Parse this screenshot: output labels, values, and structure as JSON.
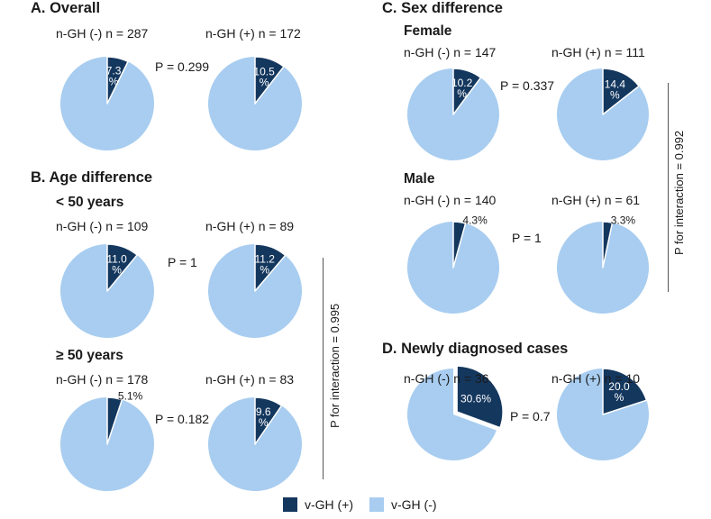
{
  "colors": {
    "positive": "#14375e",
    "negative": "#a8cdf0",
    "edge": "#ffffff"
  },
  "sections": {
    "A": "A. Overall",
    "B": "B. Age difference",
    "C": "C. Sex difference",
    "D": "D. Newly diagnosed cases"
  },
  "subheadings": {
    "under50": "< 50 years",
    "over50": "≥ 50 years",
    "female": "Female",
    "male": "Male"
  },
  "interactions": {
    "age": "P for interaction = 0.995",
    "sex": "P for interaction = 0.992"
  },
  "legend": {
    "positive": "v-GH (+)",
    "negative": "v-GH (-)"
  },
  "chart_data": [
    {
      "type": "pie",
      "panel": "A. Overall",
      "p_value": "P = 0.299",
      "pies": [
        {
          "label": "n-GH (-) n = 287",
          "positive_pct": 7.3,
          "display": "7.3\n%",
          "label_inside": true,
          "explode": false
        },
        {
          "label": "n-GH (+) n = 172",
          "positive_pct": 10.5,
          "display": "10.5\n%",
          "label_inside": true,
          "explode": false
        }
      ]
    },
    {
      "type": "pie",
      "panel": "B. Age difference",
      "group": "< 50 years",
      "p_value": "P = 1",
      "pies": [
        {
          "label": "n-GH (-) n = 109",
          "positive_pct": 11.0,
          "display": "11.0\n%",
          "label_inside": true,
          "explode": false
        },
        {
          "label": "n-GH (+) n = 89",
          "positive_pct": 11.2,
          "display": "11.2\n%",
          "label_inside": true,
          "explode": false
        }
      ]
    },
    {
      "type": "pie",
      "panel": "B. Age difference",
      "group": "≥ 50 years",
      "p_value": "P = 0.182",
      "pies": [
        {
          "label": "n-GH (-) n = 178",
          "positive_pct": 5.1,
          "display": "5.1%",
          "label_inside": false,
          "explode": false
        },
        {
          "label": "n-GH (+) n = 83",
          "positive_pct": 9.6,
          "display": "9.6\n%",
          "label_inside": true,
          "explode": false
        }
      ]
    },
    {
      "type": "pie",
      "panel": "C. Sex difference",
      "group": "Female",
      "p_value": "P = 0.337",
      "pies": [
        {
          "label": "n-GH (-) n = 147",
          "positive_pct": 10.2,
          "display": "10.2\n%",
          "label_inside": true,
          "explode": false
        },
        {
          "label": "n-GH (+) n = 111",
          "positive_pct": 14.4,
          "display": "14.4\n%",
          "label_inside": true,
          "explode": false
        }
      ]
    },
    {
      "type": "pie",
      "panel": "C. Sex difference",
      "group": "Male",
      "p_value": "P = 1",
      "pies": [
        {
          "label": "n-GH (-) n = 140",
          "positive_pct": 4.3,
          "display": "4.3%",
          "label_inside": false,
          "explode": false
        },
        {
          "label": "n-GH (+) n = 61",
          "positive_pct": 3.3,
          "display": "3.3%",
          "label_inside": false,
          "explode": false
        }
      ]
    },
    {
      "type": "pie",
      "panel": "D. Newly diagnosed cases",
      "p_value": "P = 0.7",
      "pies": [
        {
          "label": "n-GH (-) n = 36",
          "positive_pct": 30.6,
          "display": "30.6%",
          "label_inside": true,
          "explode": true
        },
        {
          "label": "n-GH (+) n = 10",
          "positive_pct": 20.0,
          "display": "20.0\n%",
          "label_inside": true,
          "explode": false
        }
      ]
    }
  ]
}
